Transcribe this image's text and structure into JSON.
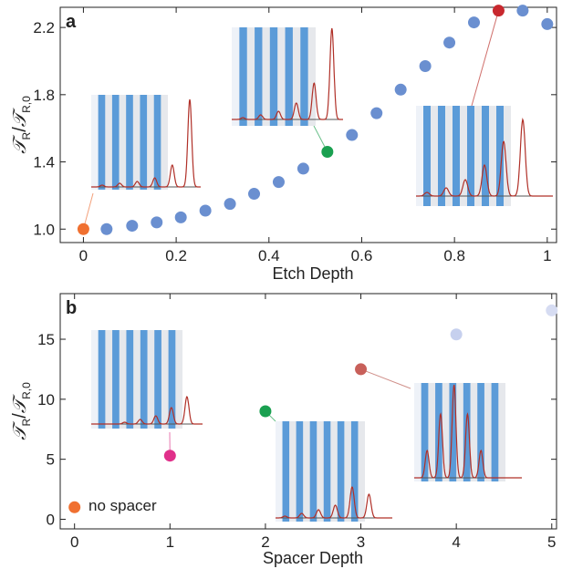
{
  "chart_data": [
    {
      "panel_label": "a",
      "type": "scatter",
      "xlabel": "Etch Depth",
      "ylabel": {
        "main": "𝒯",
        "sub": "R",
        "sep": "/",
        "main2": "𝒯",
        "sub2": "R,0"
      },
      "xlim": [
        -0.05,
        1.02
      ],
      "ylim": [
        0.92,
        2.32
      ],
      "xticks": [
        0,
        0.2,
        0.4,
        0.6,
        0.8,
        1
      ],
      "xtick_labels": [
        "0",
        "0.2",
        "0.4",
        "0.6",
        "0.8",
        "1"
      ],
      "yticks": [
        1.0,
        1.4,
        1.8,
        2.2
      ],
      "ytick_labels": [
        "1.0",
        "1.4",
        "1.8",
        "2.2"
      ],
      "grid": false,
      "series": [
        {
          "color": "#6a8fd0",
          "x": [
            0.05,
            0.105,
            0.158,
            0.21,
            0.263,
            0.316,
            0.368,
            0.421,
            0.474,
            0.579,
            0.632,
            0.684,
            0.737,
            0.789,
            0.842,
            0.947,
            1.0
          ],
          "y": [
            1.0,
            1.02,
            1.04,
            1.07,
            1.11,
            1.15,
            1.21,
            1.28,
            1.36,
            1.56,
            1.69,
            1.83,
            1.97,
            2.11,
            2.23,
            2.3,
            2.22
          ]
        }
      ],
      "highlights": [
        {
          "x": 0.0,
          "y": 1.0,
          "color": "#f07030"
        },
        {
          "x": 0.526,
          "y": 1.46,
          "color": "#1aa050"
        },
        {
          "x": 0.895,
          "y": 2.3,
          "color": "#c8282e"
        }
      ]
    },
    {
      "panel_label": "b",
      "type": "scatter",
      "xlabel": "Spacer Depth",
      "ylabel": {
        "main": "𝒯",
        "sub": "R",
        "sep": "/",
        "main2": "𝒯",
        "sub2": "R,0"
      },
      "xlim": [
        -0.15,
        5.05
      ],
      "ylim": [
        -0.8,
        18.8
      ],
      "xticks": [
        0,
        1,
        2,
        3,
        4,
        5
      ],
      "xtick_labels": [
        "0",
        "1",
        "2",
        "3",
        "4",
        "5"
      ],
      "yticks": [
        0,
        5,
        10,
        15
      ],
      "ytick_labels": [
        "0",
        "5",
        "10",
        "15"
      ],
      "grid": false,
      "points": [
        {
          "x": 0,
          "y": 1.0,
          "color": "#f07030"
        },
        {
          "x": 1,
          "y": 5.3,
          "color": "#e0308a"
        },
        {
          "x": 2,
          "y": 9.0,
          "color": "#1aa050"
        },
        {
          "x": 3,
          "y": 12.5,
          "color": "#c8605a"
        },
        {
          "x": 4,
          "y": 15.4,
          "color": "#c6d0ee"
        },
        {
          "x": 5,
          "y": 17.4,
          "color": "#d6dcf2"
        }
      ],
      "annotation": {
        "text": "no spacer",
        "color": "#f07030"
      }
    }
  ],
  "colors": {
    "stripe": "#5b9bd8",
    "stripe_bg": "#e6e8ec",
    "curve": "#b03028",
    "axis": "#222222"
  }
}
